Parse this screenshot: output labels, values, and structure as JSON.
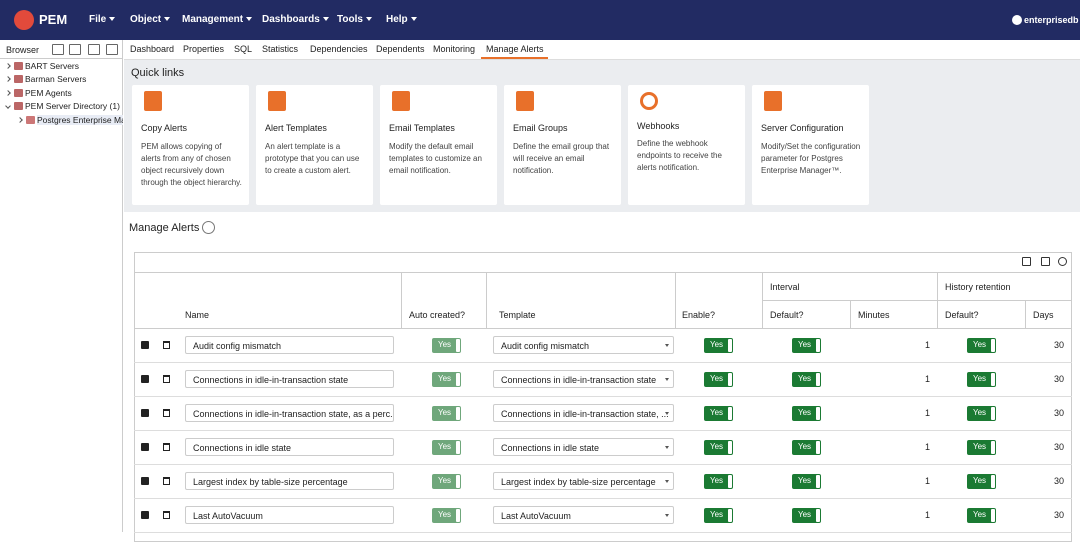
{
  "navbar": {
    "brand": "PEM",
    "menus": [
      "File",
      "Object",
      "Management",
      "Dashboards",
      "Tools",
      "Help"
    ],
    "user": "enterprisedb"
  },
  "browser": {
    "title": "Browser",
    "tree": [
      "BART Servers",
      "Barman Servers",
      "PEM Agents",
      "PEM Server Directory (1)",
      "Postgres Enterprise Man"
    ]
  },
  "tabs": {
    "items": [
      "Dashboard",
      "Properties",
      "SQL",
      "Statistics",
      "Dependencies",
      "Dependents",
      "Monitoring",
      "Manage Alerts"
    ],
    "active": "Manage Alerts"
  },
  "quick_links": {
    "title": "Quick links",
    "cards": [
      {
        "title": "Copy Alerts",
        "description": "PEM allows copying of alerts from any of chosen object recursively down through the object hierarchy."
      },
      {
        "title": "Alert Templates",
        "description": "An alert template is a prototype that you can use to create a custom alert."
      },
      {
        "title": "Email Templates",
        "description": "Modify the default email templates to customize an email notification."
      },
      {
        "title": "Email Groups",
        "description": "Define the email group that will receive an email notification."
      },
      {
        "title": "Webhooks",
        "description": "Define the webhook endpoints to receive the alerts notification."
      },
      {
        "title": "Server Configuration",
        "description": "Modify/Set the configuration parameter for Postgres Enterprise Manager™."
      }
    ]
  },
  "manage_alerts": {
    "title": "Manage Alerts",
    "group_headers": [
      "Interval",
      "History retention"
    ],
    "headers": [
      "Name",
      "Auto created?",
      "Template",
      "Enable?",
      "Default?",
      "Minutes",
      "Default?",
      "Days"
    ],
    "rows": [
      [
        "Audit config mismatch",
        "Yes",
        "Audit config mismatch",
        "Yes",
        "Yes",
        "1",
        "Yes",
        "30"
      ],
      [
        "Connections in idle-in-transaction state",
        "Yes",
        "Connections in idle-in-transaction state",
        "Yes",
        "Yes",
        "1",
        "Yes",
        "30"
      ],
      [
        "Connections in idle-in-transaction state, as a perc...",
        "Yes",
        "Connections in idle-in-transaction state, ...",
        "Yes",
        "Yes",
        "1",
        "Yes",
        "30"
      ],
      [
        "Connections in idle state",
        "Yes",
        "Connections in idle state",
        "Yes",
        "Yes",
        "1",
        "Yes",
        "30"
      ],
      [
        "Largest index by table-size percentage",
        "Yes",
        "Largest index by table-size percentage",
        "Yes",
        "Yes",
        "1",
        "Yes",
        "30"
      ],
      [
        "Last AutoVacuum",
        "Yes",
        "Last AutoVacuum",
        "Yes",
        "Yes",
        "1",
        "Yes",
        "30"
      ]
    ]
  }
}
